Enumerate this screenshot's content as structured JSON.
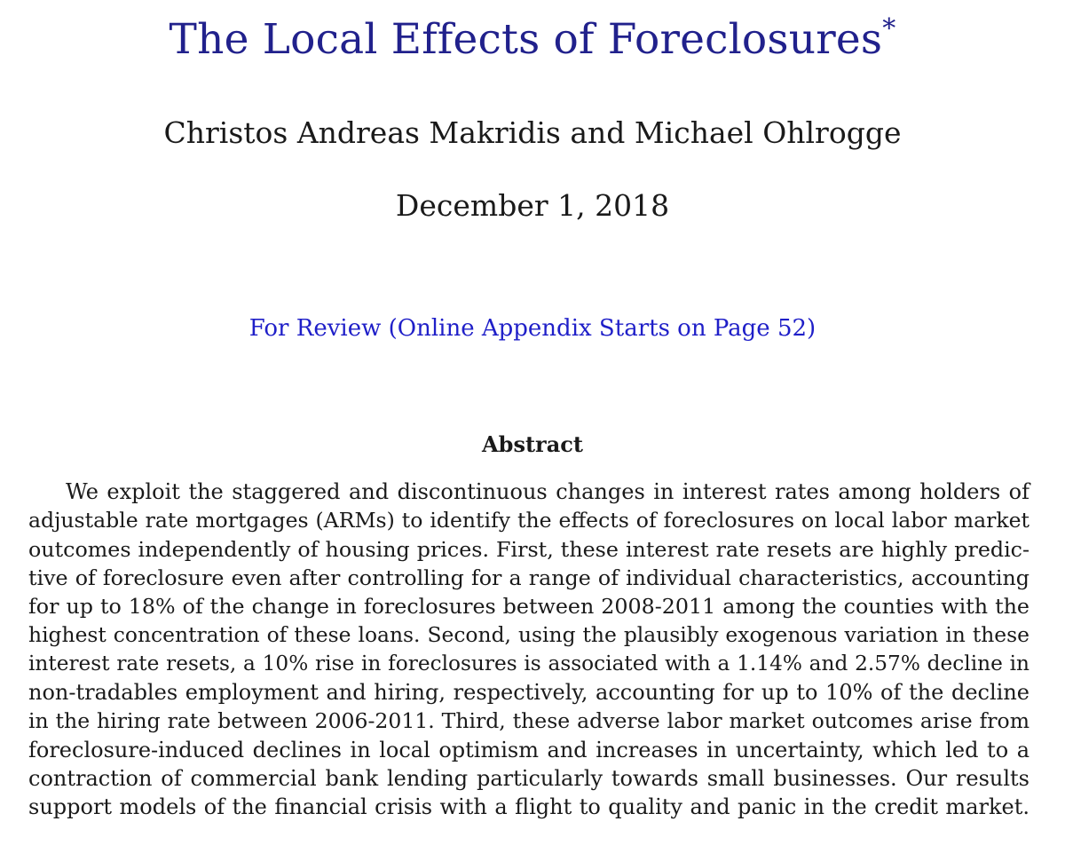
{
  "paper": {
    "title": "The Local Effects of Foreclosures",
    "title_footnote_marker": "*",
    "authors": "Christos Andreas Makridis and Michael Ohlrogge",
    "date": "December 1, 2018",
    "review_note": "For Review (Online Appendix Starts on Page 52)",
    "abstract": {
      "heading": "Abstract",
      "lines": [
        "We exploit the staggered and discontinuous changes in interest rates among holders of",
        "adjustable rate mortgages (ARMs) to identify the effects of foreclosures on local labor market",
        "outcomes independently of housing prices. First, these interest rate resets are highly predic-",
        "tive of foreclosure even after controlling for a range of individual characteristics, accounting",
        "for up to 18% of the change in foreclosures between 2008-2011 among the counties with the",
        "highest concentration of these loans. Second, using the plausibly exogenous variation in these",
        "interest rate resets, a 10% rise in foreclosures is associated with a 1.14% and 2.57% decline in",
        "non-tradables employment and hiring, respectively, accounting for up to 10% of the decline",
        "in the hiring rate between 2006-2011. Third, these adverse labor market outcomes arise from",
        "foreclosure-induced declines in local optimism and increases in uncertainty, which led to a",
        "contraction of commercial bank lending particularly towards small businesses. Our results",
        "support models of the financial crisis with a flight to quality and panic in the credit market."
      ]
    }
  },
  "colors": {
    "title": "#21218c",
    "link": "#1f1fc8",
    "text": "#1a1a1a",
    "background": "#ffffff"
  }
}
